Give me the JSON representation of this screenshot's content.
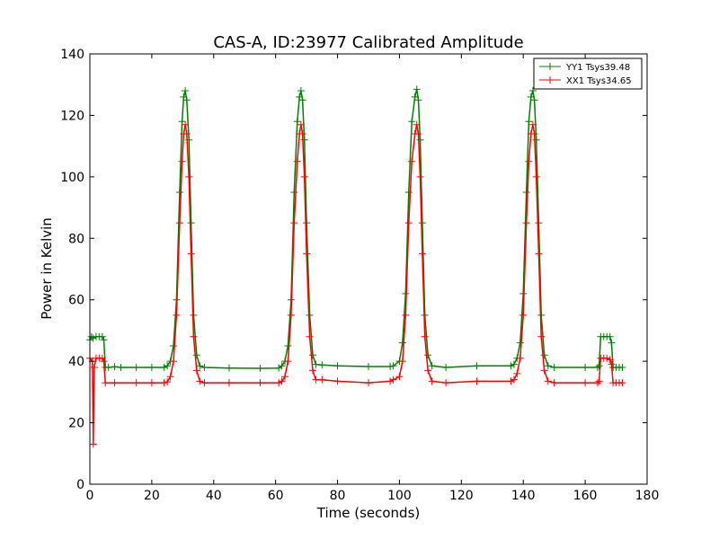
{
  "chart_data": {
    "type": "line",
    "title": "CAS-A, ID:23977 Calibrated Amplitude",
    "xlabel": "Time (seconds)",
    "ylabel": "Power in Kelvin",
    "xlim": [
      0,
      180
    ],
    "ylim": [
      0,
      140
    ],
    "xticks": [
      0,
      20,
      40,
      60,
      80,
      100,
      120,
      140,
      160,
      180
    ],
    "yticks": [
      0,
      20,
      40,
      60,
      80,
      100,
      120,
      140
    ],
    "grid": false,
    "legend_position": "top-right",
    "series": [
      {
        "name": "YY1 Tsys39.48",
        "color": "#008000",
        "marker": "+",
        "points": [
          [
            0,
            47
          ],
          [
            0.5,
            48
          ],
          [
            1,
            47.5
          ],
          [
            2,
            48
          ],
          [
            3,
            48
          ],
          [
            4,
            48
          ],
          [
            4.5,
            47
          ],
          [
            5,
            38
          ],
          [
            6,
            38
          ],
          [
            8,
            38.2
          ],
          [
            10,
            38
          ],
          [
            15,
            38
          ],
          [
            20,
            38
          ],
          [
            24,
            38
          ],
          [
            25,
            38.5
          ],
          [
            26,
            40
          ],
          [
            27,
            45
          ],
          [
            28,
            60
          ],
          [
            29,
            95
          ],
          [
            29.8,
            118
          ],
          [
            30.3,
            126
          ],
          [
            30.8,
            128
          ],
          [
            31.3,
            125
          ],
          [
            32,
            112
          ],
          [
            32.7,
            85
          ],
          [
            33.5,
            55
          ],
          [
            34.5,
            42
          ],
          [
            35.5,
            38.5
          ],
          [
            37,
            38
          ],
          [
            45,
            37.8
          ],
          [
            55,
            37.7
          ],
          [
            61,
            37.8
          ],
          [
            62,
            38.5
          ],
          [
            63,
            40
          ],
          [
            64,
            45
          ],
          [
            65,
            60
          ],
          [
            66,
            95
          ],
          [
            67,
            118
          ],
          [
            67.7,
            126
          ],
          [
            68.2,
            128
          ],
          [
            68.7,
            125
          ],
          [
            69.3,
            112
          ],
          [
            70,
            85
          ],
          [
            71,
            55
          ],
          [
            72,
            42
          ],
          [
            73,
            39
          ],
          [
            75,
            38.8
          ],
          [
            80,
            38.5
          ],
          [
            90,
            38.3
          ],
          [
            97,
            38.3
          ],
          [
            98,
            38.5
          ],
          [
            100,
            40
          ],
          [
            101,
            46
          ],
          [
            102,
            62
          ],
          [
            103,
            95
          ],
          [
            104,
            118
          ],
          [
            105,
            126
          ],
          [
            105.6,
            128.5
          ],
          [
            106.1,
            125
          ],
          [
            106.7,
            112
          ],
          [
            107.4,
            85
          ],
          [
            108.2,
            55
          ],
          [
            109.2,
            42
          ],
          [
            110.5,
            38.5
          ],
          [
            115,
            38
          ],
          [
            125,
            38.5
          ],
          [
            136,
            38.5
          ],
          [
            137,
            39
          ],
          [
            138,
            41
          ],
          [
            139,
            46
          ],
          [
            140,
            62
          ],
          [
            141,
            95
          ],
          [
            141.8,
            118
          ],
          [
            142.5,
            126
          ],
          [
            143.1,
            128
          ],
          [
            143.6,
            125
          ],
          [
            144.2,
            112
          ],
          [
            145,
            85
          ],
          [
            145.8,
            55
          ],
          [
            146.8,
            42
          ],
          [
            148,
            38.5
          ],
          [
            150,
            38
          ],
          [
            160,
            38
          ],
          [
            164,
            38
          ],
          [
            164.5,
            38.5
          ],
          [
            165,
            48
          ],
          [
            166,
            48
          ],
          [
            167,
            48
          ],
          [
            168,
            48
          ],
          [
            168.5,
            46
          ],
          [
            169,
            38
          ],
          [
            170,
            38
          ],
          [
            171,
            38
          ],
          [
            172,
            38
          ]
        ]
      },
      {
        "name": "XX1 Tsys34.65",
        "color": "#ff0000",
        "marker": "+",
        "points": [
          [
            0,
            41
          ],
          [
            0.8,
            40
          ],
          [
            1.1,
            13
          ],
          [
            1.4,
            38
          ],
          [
            2,
            41
          ],
          [
            3,
            41
          ],
          [
            4,
            41
          ],
          [
            4.5,
            40
          ],
          [
            5,
            33
          ],
          [
            8,
            33
          ],
          [
            15,
            33
          ],
          [
            20,
            33
          ],
          [
            24,
            33
          ],
          [
            25,
            33.3
          ],
          [
            26,
            35
          ],
          [
            27,
            40
          ],
          [
            28,
            55
          ],
          [
            29,
            85
          ],
          [
            29.8,
            105
          ],
          [
            30.3,
            114
          ],
          [
            30.8,
            117
          ],
          [
            31.3,
            114
          ],
          [
            32,
            100
          ],
          [
            32.7,
            75
          ],
          [
            33.5,
            48
          ],
          [
            34.5,
            37
          ],
          [
            35.5,
            33.5
          ],
          [
            37,
            33
          ],
          [
            45,
            33
          ],
          [
            55,
            33
          ],
          [
            61,
            33
          ],
          [
            62,
            33.5
          ],
          [
            63,
            35
          ],
          [
            64,
            40
          ],
          [
            65,
            55
          ],
          [
            66,
            85
          ],
          [
            67,
            105
          ],
          [
            67.7,
            114
          ],
          [
            68.2,
            117
          ],
          [
            68.7,
            114
          ],
          [
            69.3,
            100
          ],
          [
            70,
            75
          ],
          [
            71,
            48
          ],
          [
            72,
            37
          ],
          [
            73,
            34
          ],
          [
            75,
            34
          ],
          [
            80,
            33.5
          ],
          [
            90,
            33
          ],
          [
            97,
            33.5
          ],
          [
            98,
            34
          ],
          [
            100,
            35
          ],
          [
            101,
            40
          ],
          [
            102,
            55
          ],
          [
            103,
            85
          ],
          [
            104,
            105
          ],
          [
            105,
            114
          ],
          [
            105.6,
            117
          ],
          [
            106.1,
            114
          ],
          [
            106.7,
            100
          ],
          [
            107.4,
            75
          ],
          [
            108.2,
            48
          ],
          [
            109.2,
            37
          ],
          [
            110.5,
            33.5
          ],
          [
            115,
            33
          ],
          [
            125,
            33.5
          ],
          [
            136,
            33.5
          ],
          [
            137,
            34
          ],
          [
            138,
            36
          ],
          [
            139,
            41
          ],
          [
            140,
            55
          ],
          [
            141,
            85
          ],
          [
            141.8,
            105
          ],
          [
            142.5,
            114
          ],
          [
            143.1,
            117
          ],
          [
            143.6,
            114
          ],
          [
            144.2,
            100
          ],
          [
            145,
            75
          ],
          [
            145.8,
            48
          ],
          [
            146.8,
            37
          ],
          [
            148,
            33.5
          ],
          [
            150,
            33
          ],
          [
            160,
            33
          ],
          [
            164,
            33
          ],
          [
            164.5,
            33.5
          ],
          [
            165,
            41
          ],
          [
            166,
            41
          ],
          [
            167,
            41
          ],
          [
            168,
            40.5
          ],
          [
            168.5,
            39
          ],
          [
            169,
            33
          ],
          [
            170,
            33
          ],
          [
            171,
            33
          ],
          [
            172,
            33
          ]
        ]
      }
    ]
  }
}
